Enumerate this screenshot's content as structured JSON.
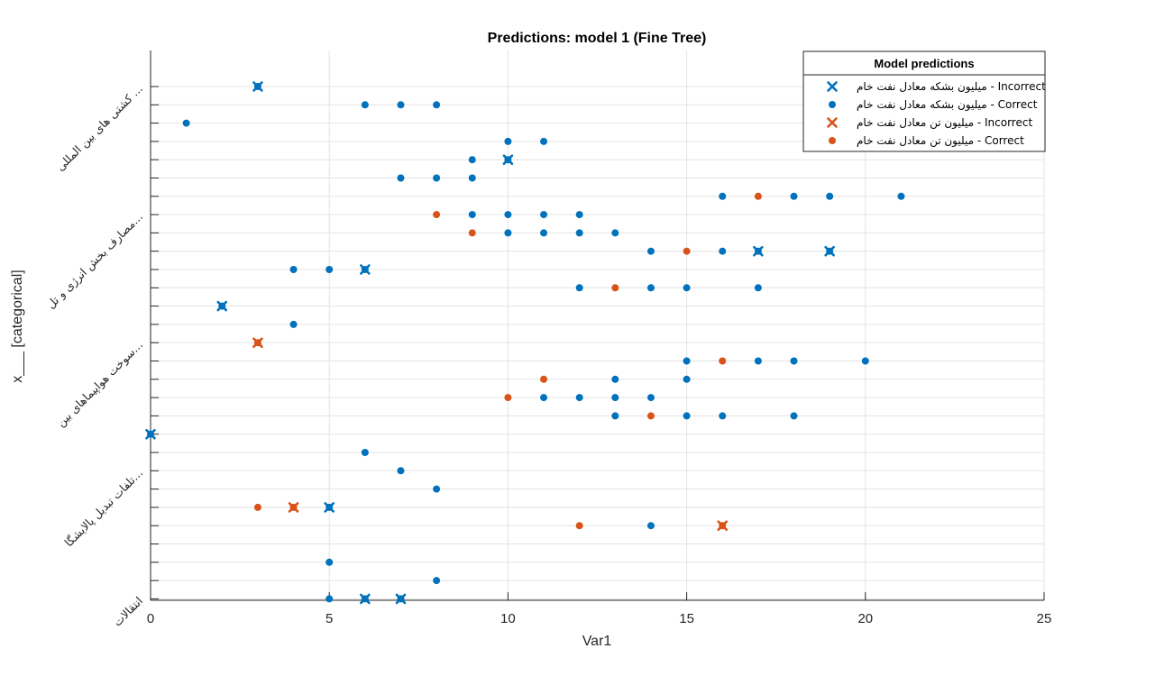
{
  "chart_data": {
    "type": "scatter",
    "title": "Predictions: model 1 (Fine Tree)",
    "xlabel": "Var1",
    "ylabel": "x___ [categorical]",
    "xlim": [
      0,
      25
    ],
    "xticks": [
      "0",
      "5",
      "10",
      "15",
      "20",
      "25"
    ],
    "grid": true,
    "legend": {
      "title": "Model predictions",
      "placement": "top-right",
      "entries": [
        {
          "label": "میلیون بشکه معادل نفت خام - Incorrect",
          "marker": "x",
          "color": "#0072BD"
        },
        {
          "label": "میلیون بشکه معادل نفت خام - Correct",
          "marker": "dot",
          "color": "#0072BD"
        },
        {
          "label": "میلیون تن معادل نفت خام - Incorrect",
          "marker": "x",
          "color": "#D95319"
        },
        {
          "label": "میلیون تن معادل نفت خام - Correct",
          "marker": "dot",
          "color": "#D95319"
        }
      ]
    },
    "colors": {
      "series_blue": "#0072BD",
      "series_orange": "#D95319",
      "grid": "#e3e3e3",
      "axis": "#262626"
    },
    "y_categories_count": 29,
    "y_tick_labels": [
      {
        "text": "کشتی های بین المللی ...",
        "category": 1
      },
      {
        "text": "مصارف بخش انرژی و تل...",
        "category": 8
      },
      {
        "text": "سوخت هواپیماهای بین...",
        "category": 15
      },
      {
        "text": "تلفات تبدیل پالایشگا...",
        "category": 22
      },
      {
        "text": "انتقالات",
        "category": 29
      }
    ],
    "series": [
      {
        "name": "میلیون بشکه معادل نفت خام - Incorrect",
        "marker": "x",
        "color": "#0072BD",
        "points": [
          [
            3,
            1
          ],
          [
            10,
            5
          ],
          [
            17,
            10
          ],
          [
            19,
            10
          ],
          [
            6,
            11
          ],
          [
            2,
            13
          ],
          [
            0,
            20
          ],
          [
            5,
            24
          ],
          [
            6,
            29
          ],
          [
            7,
            29
          ]
        ]
      },
      {
        "name": "میلیون بشکه معادل نفت خام - Correct",
        "marker": "dot",
        "color": "#0072BD",
        "points": [
          [
            3,
            1
          ],
          [
            6,
            2
          ],
          [
            7,
            2
          ],
          [
            8,
            2
          ],
          [
            1,
            3
          ],
          [
            10,
            4
          ],
          [
            11,
            4
          ],
          [
            9,
            5
          ],
          [
            10,
            5
          ],
          [
            7,
            6
          ],
          [
            8,
            6
          ],
          [
            9,
            6
          ],
          [
            16,
            7
          ],
          [
            18,
            7
          ],
          [
            19,
            7
          ],
          [
            21,
            7
          ],
          [
            9,
            8
          ],
          [
            10,
            8
          ],
          [
            11,
            8
          ],
          [
            12,
            8
          ],
          [
            10,
            9
          ],
          [
            11,
            9
          ],
          [
            12,
            9
          ],
          [
            13,
            9
          ],
          [
            14,
            10
          ],
          [
            16,
            10
          ],
          [
            17,
            10
          ],
          [
            19,
            10
          ],
          [
            4,
            11
          ],
          [
            5,
            11
          ],
          [
            6,
            11
          ],
          [
            12,
            12
          ],
          [
            14,
            12
          ],
          [
            15,
            12
          ],
          [
            17,
            12
          ],
          [
            2,
            13
          ],
          [
            4,
            14
          ],
          [
            15,
            16
          ],
          [
            17,
            16
          ],
          [
            18,
            16
          ],
          [
            20,
            16
          ],
          [
            13,
            17
          ],
          [
            15,
            17
          ],
          [
            11,
            18
          ],
          [
            12,
            18
          ],
          [
            13,
            18
          ],
          [
            14,
            18
          ],
          [
            13,
            19
          ],
          [
            15,
            19
          ],
          [
            16,
            19
          ],
          [
            18,
            19
          ],
          [
            0,
            20
          ],
          [
            6,
            21
          ],
          [
            7,
            22
          ],
          [
            8,
            23
          ],
          [
            5,
            24
          ],
          [
            14,
            25
          ],
          [
            5,
            27
          ],
          [
            8,
            28
          ],
          [
            5,
            29
          ],
          [
            6,
            29
          ],
          [
            7,
            29
          ]
        ]
      },
      {
        "name": "میلیون تن معادل نفت خام - Incorrect",
        "marker": "x",
        "color": "#D95319",
        "points": [
          [
            3,
            15
          ],
          [
            4,
            24
          ],
          [
            16,
            25
          ]
        ]
      },
      {
        "name": "میلیون تن معادل نفت خام - Correct",
        "marker": "dot",
        "color": "#D95319",
        "points": [
          [
            17,
            7
          ],
          [
            8,
            8
          ],
          [
            9,
            9
          ],
          [
            15,
            10
          ],
          [
            13,
            12
          ],
          [
            3,
            15
          ],
          [
            16,
            16
          ],
          [
            11,
            17
          ],
          [
            10,
            18
          ],
          [
            14,
            19
          ],
          [
            3,
            24
          ],
          [
            4,
            24
          ],
          [
            12,
            25
          ],
          [
            16,
            25
          ]
        ]
      }
    ]
  }
}
